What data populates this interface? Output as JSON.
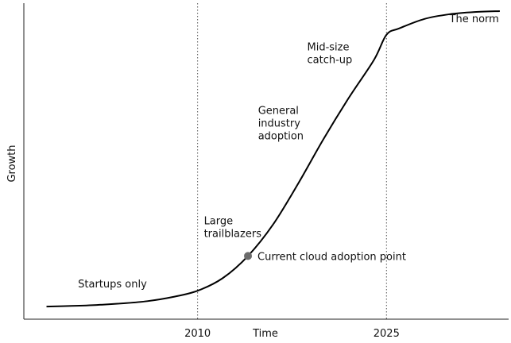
{
  "chart_data": {
    "type": "line",
    "title": "",
    "xlabel": "Time",
    "ylabel": "Growth",
    "xlim": [
      1996.2,
      2034.7
    ],
    "ylim": [
      0,
      1
    ],
    "x_ticks": [
      {
        "value": 2010,
        "label": "2010"
      },
      {
        "value": 2025,
        "label": "2025"
      }
    ],
    "reference_lines": [
      {
        "x": 2010,
        "style": "dotted"
      },
      {
        "x": 2025,
        "style": "dotted"
      }
    ],
    "series": [
      {
        "x": [
          1998,
          2000,
          2002,
          2004,
          2006,
          2008,
          2010,
          2012,
          2014,
          2016,
          2018,
          2020,
          2022,
          2024,
          2025,
          2026,
          2028,
          2030,
          2032,
          2034
        ],
        "values": [
          0.04,
          0.042,
          0.045,
          0.05,
          0.057,
          0.07,
          0.09,
          0.13,
          0.2,
          0.3,
          0.43,
          0.57,
          0.7,
          0.82,
          0.9,
          0.92,
          0.95,
          0.965,
          0.972,
          0.975
        ]
      }
    ],
    "highlight_point": {
      "x": 2014,
      "y": 0.2,
      "label": "Current cloud adoption point",
      "color": "#6b6b6b"
    },
    "annotations": [
      {
        "lines": [
          "Startups only"
        ],
        "x": 2000.5,
        "y": 0.1
      },
      {
        "lines": [
          "Large",
          "trailblazers"
        ],
        "x": 2010.5,
        "y": 0.3
      },
      {
        "lines": [
          "General",
          "industry",
          "adoption"
        ],
        "x": 2014.8,
        "y": 0.65
      },
      {
        "lines": [
          "Mid-size",
          "catch-up"
        ],
        "x": 2018.7,
        "y": 0.85
      },
      {
        "lines": [
          "The norm"
        ],
        "x": 2030,
        "y": 0.94
      }
    ],
    "grid": false,
    "legend": "none"
  }
}
